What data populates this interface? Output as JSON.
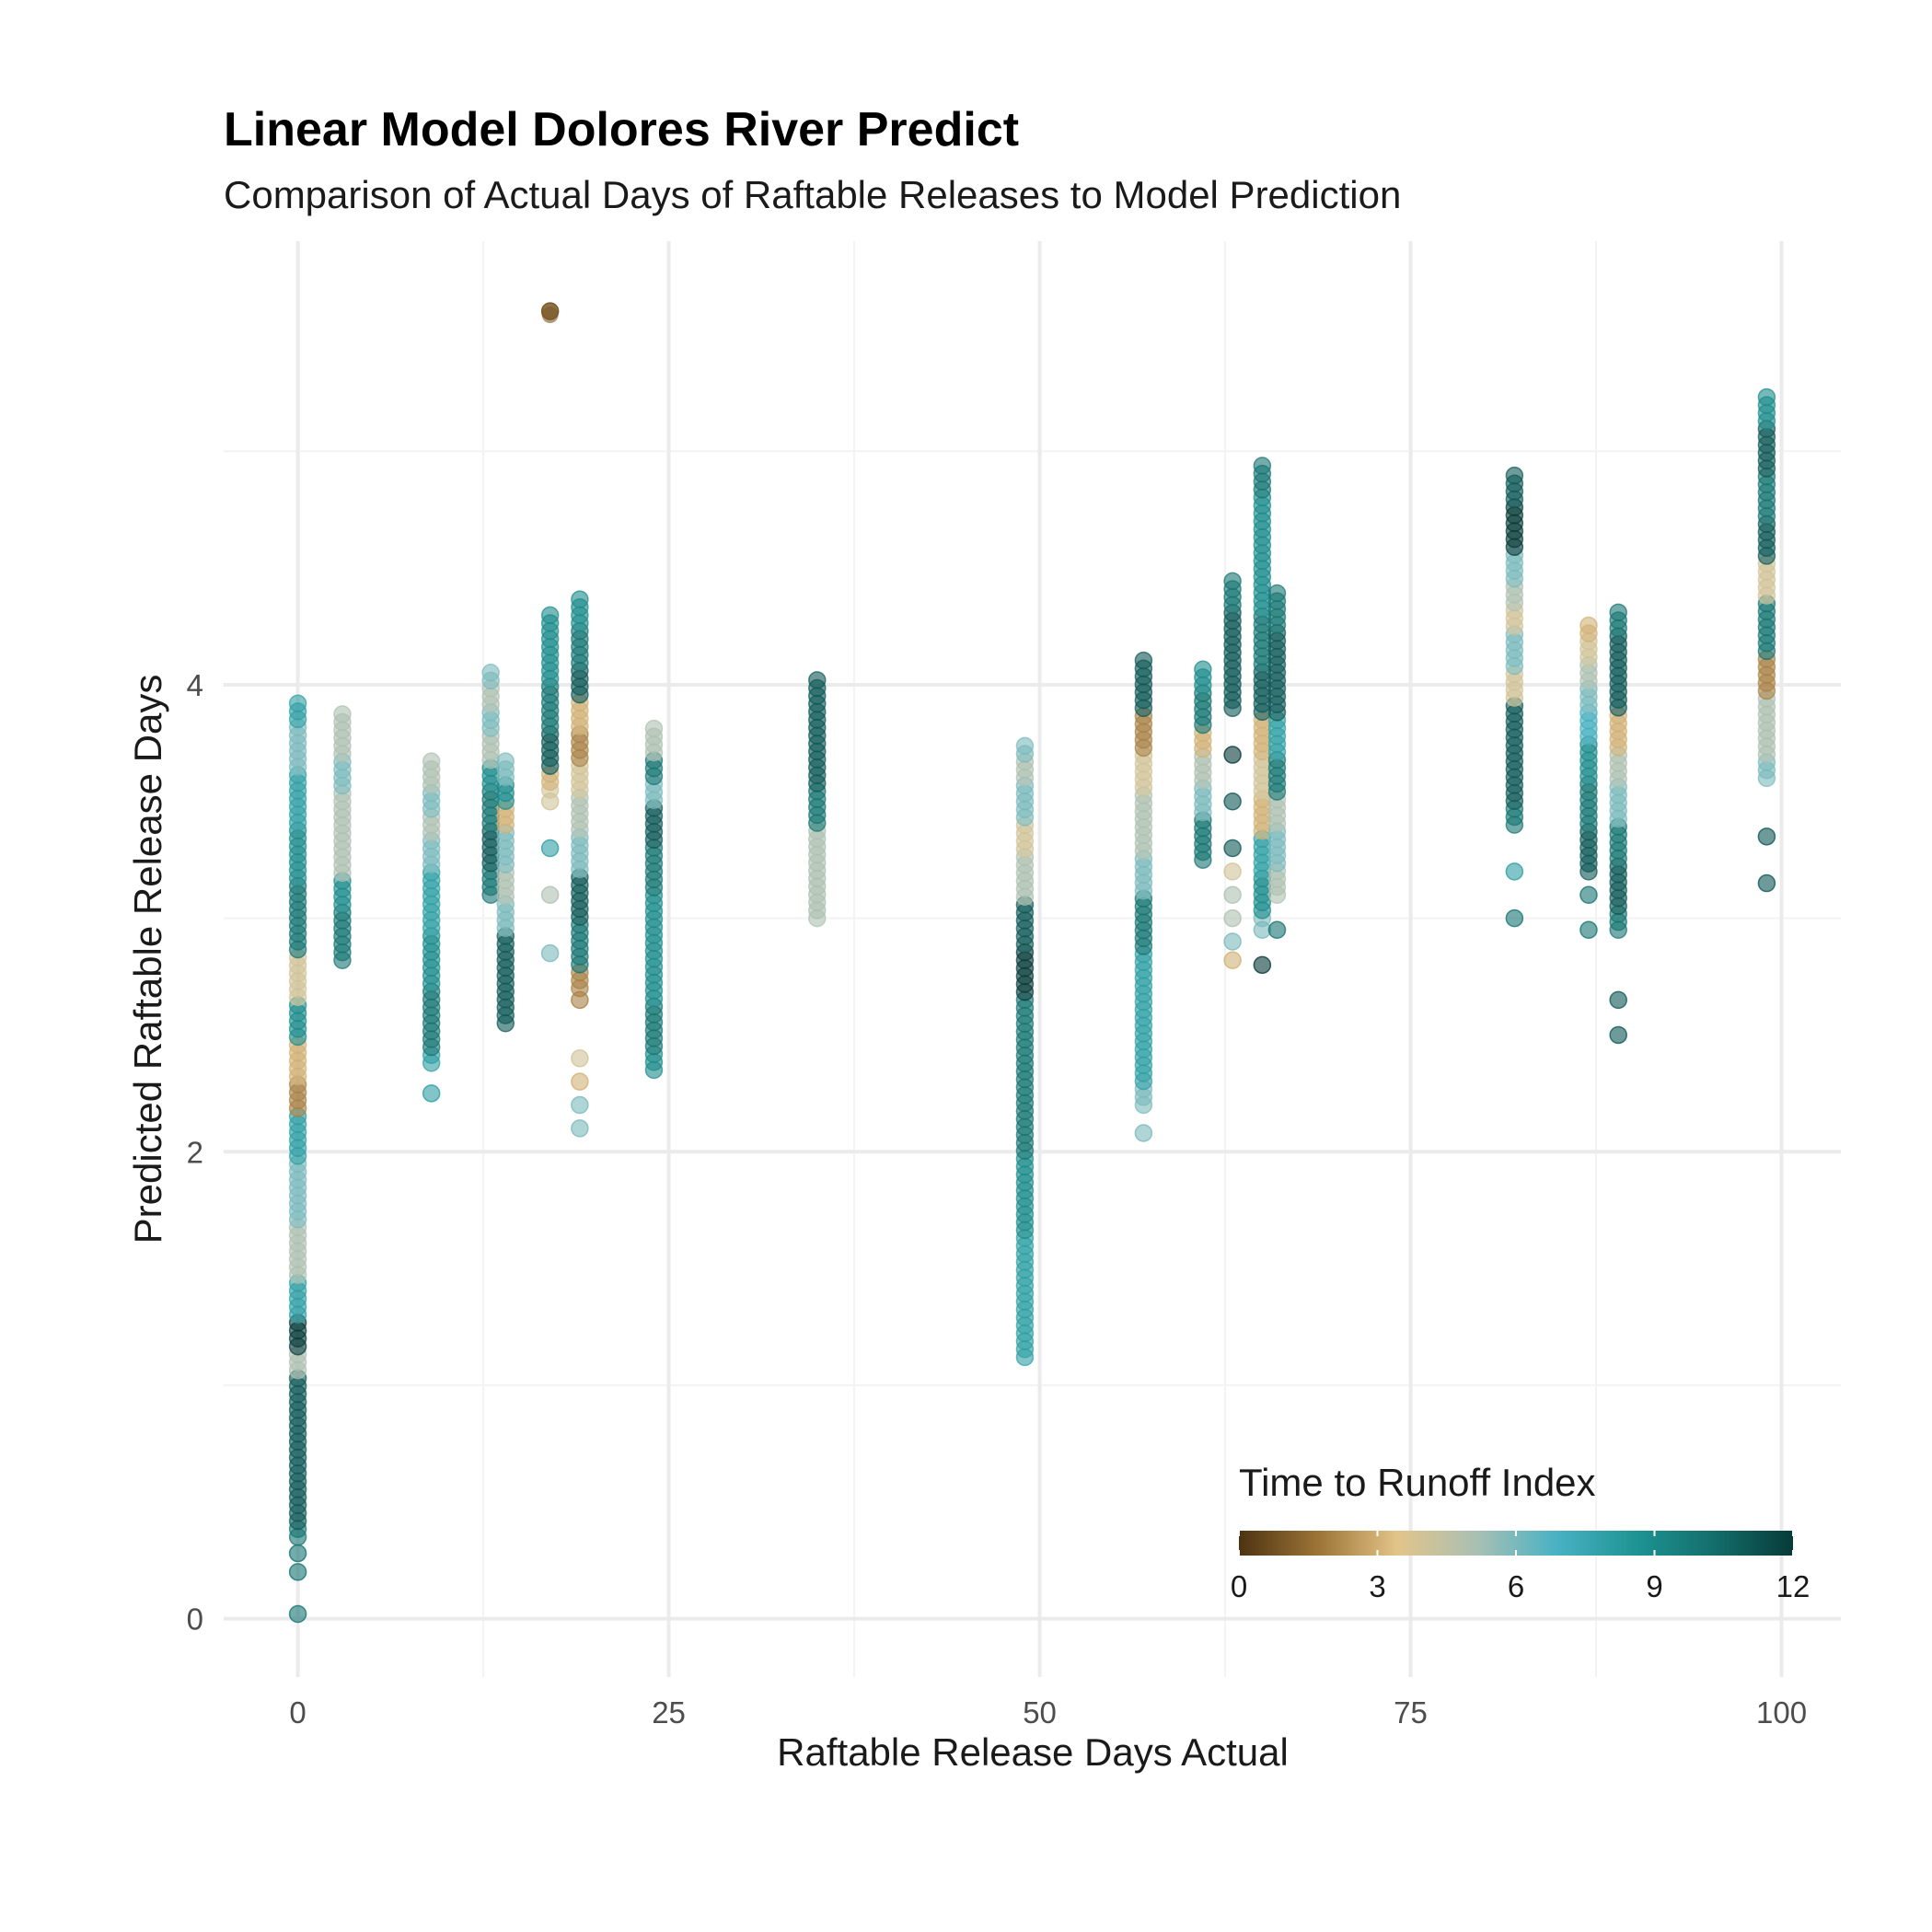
{
  "chart_data": {
    "type": "scatter",
    "title": "Linear Model Dolores River Predict",
    "subtitle": "Comparison of Actual Days of Raftable Releases to Model Prediction",
    "xlabel": "Raftable Release Days Actual",
    "ylabel": "Predicted Raftable Release Days",
    "xlim": [
      -5,
      104
    ],
    "ylim": [
      -0.25,
      5.9
    ],
    "x_ticks": [
      0,
      25,
      50,
      75,
      100
    ],
    "x_tick_labels": [
      "0",
      "25",
      "50",
      "75",
      "100"
    ],
    "y_ticks": [
      0,
      2,
      4
    ],
    "y_tick_labels": [
      "0",
      "2",
      "4"
    ],
    "grid": true,
    "legend": {
      "title": "Time to Runoff Index",
      "placement": "bottom-right",
      "ticks": [
        0,
        3,
        6,
        9,
        12
      ],
      "tick_labels": [
        "0",
        "3",
        "6",
        "9",
        "12"
      ],
      "range": [
        0,
        12
      ],
      "colors": [
        "#4d3312",
        "#9c7436",
        "#e3c489",
        "#a9c0b3",
        "#4ab2c4",
        "#1e9494",
        "#136e6b",
        "#073b39"
      ]
    },
    "point_opacity": 0.6,
    "columns": [
      {
        "x": 0,
        "y_min": 0.0,
        "y_max": 3.95,
        "dense_from": 0.35,
        "colored": [
          {
            "y": 0.02,
            "c": 10
          },
          {
            "y": 0.2,
            "c": 10
          },
          {
            "y": 0.28,
            "c": 10
          },
          {
            "y": 0.55,
            "c": 11
          },
          {
            "y": 0.8,
            "c": 11
          },
          {
            "y": 1.0,
            "c": 11
          },
          {
            "y": 1.1,
            "c": 5
          },
          {
            "y": 1.2,
            "c": 12
          },
          {
            "y": 1.35,
            "c": 8
          },
          {
            "y": 1.55,
            "c": 5
          },
          {
            "y": 1.62,
            "c": 5
          },
          {
            "y": 1.75,
            "c": 6
          },
          {
            "y": 1.9,
            "c": 6
          },
          {
            "y": 2.05,
            "c": 8
          },
          {
            "y": 2.12,
            "c": 8
          },
          {
            "y": 2.25,
            "c": 2
          },
          {
            "y": 2.35,
            "c": 3
          },
          {
            "y": 2.6,
            "c": 9
          },
          {
            "y": 2.7,
            "c": 4
          },
          {
            "y": 3.0,
            "c": 10
          },
          {
            "y": 3.3,
            "c": 9
          },
          {
            "y": 3.5,
            "c": 8
          },
          {
            "y": 3.75,
            "c": 6
          },
          {
            "y": 3.9,
            "c": 8
          }
        ]
      },
      {
        "x": 3,
        "y_min": 2.82,
        "y_max": 3.88,
        "dense_from": 2.82,
        "colored": [
          {
            "y": 3.85,
            "c": 5
          },
          {
            "y": 3.78,
            "c": 5
          },
          {
            "y": 3.62,
            "c": 6
          },
          {
            "y": 3.5,
            "c": 5
          },
          {
            "y": 3.35,
            "c": 5
          },
          {
            "y": 3.25,
            "c": 5
          },
          {
            "y": 3.1,
            "c": 9
          },
          {
            "y": 2.95,
            "c": 10
          }
        ]
      },
      {
        "x": 9,
        "y_min": 2.25,
        "y_max": 3.7,
        "dense_from": 2.38,
        "colored": [
          {
            "y": 3.68,
            "c": 5
          },
          {
            "y": 3.6,
            "c": 5
          },
          {
            "y": 3.5,
            "c": 6
          },
          {
            "y": 3.4,
            "c": 5
          },
          {
            "y": 3.3,
            "c": 6
          },
          {
            "y": 3.15,
            "c": 8
          },
          {
            "y": 3.05,
            "c": 8
          },
          {
            "y": 2.8,
            "c": 9
          },
          {
            "y": 2.6,
            "c": 10
          },
          {
            "y": 2.25,
            "c": 8
          }
        ]
      },
      {
        "x": 13,
        "y_min": 3.1,
        "y_max": 4.08,
        "dense_from": 3.1,
        "colored": [
          {
            "y": 4.05,
            "c": 6
          },
          {
            "y": 3.95,
            "c": 5
          },
          {
            "y": 3.85,
            "c": 6
          },
          {
            "y": 3.75,
            "c": 5
          },
          {
            "y": 3.6,
            "c": 9
          },
          {
            "y": 3.5,
            "c": 10
          },
          {
            "y": 3.3,
            "c": 11
          },
          {
            "y": 3.15,
            "c": 10
          }
        ]
      },
      {
        "x": 14,
        "y_min": 2.55,
        "y_max": 3.7,
        "dense_from": 2.55,
        "colored": [
          {
            "y": 3.65,
            "c": 6
          },
          {
            "y": 3.55,
            "c": 9
          },
          {
            "y": 3.45,
            "c": 3
          },
          {
            "y": 3.3,
            "c": 6
          },
          {
            "y": 3.15,
            "c": 5
          },
          {
            "y": 3.0,
            "c": 6
          },
          {
            "y": 2.85,
            "c": 11
          },
          {
            "y": 2.6,
            "c": 11
          }
        ]
      },
      {
        "x": 17,
        "y_min": 2.85,
        "y_max": 4.3,
        "dense_from": 3.55,
        "colored": [
          {
            "y": 5.6,
            "c": 1
          },
          {
            "y": 4.25,
            "c": 9
          },
          {
            "y": 4.1,
            "c": 9
          },
          {
            "y": 3.9,
            "c": 10
          },
          {
            "y": 3.7,
            "c": 11
          },
          {
            "y": 3.6,
            "c": 3
          },
          {
            "y": 3.5,
            "c": 4
          },
          {
            "y": 3.3,
            "c": 8
          },
          {
            "y": 3.1,
            "c": 5
          },
          {
            "y": 2.85,
            "c": 6
          }
        ]
      },
      {
        "x": 19,
        "y_min": 2.1,
        "y_max": 4.38,
        "dense_from": 2.7,
        "colored": [
          {
            "y": 4.35,
            "c": 9
          },
          {
            "y": 4.15,
            "c": 10
          },
          {
            "y": 4.0,
            "c": 11
          },
          {
            "y": 3.85,
            "c": 3
          },
          {
            "y": 3.75,
            "c": 2
          },
          {
            "y": 3.6,
            "c": 4
          },
          {
            "y": 3.45,
            "c": 5
          },
          {
            "y": 3.3,
            "c": 6
          },
          {
            "y": 3.1,
            "c": 11
          },
          {
            "y": 2.9,
            "c": 10
          },
          {
            "y": 2.65,
            "c": 2
          },
          {
            "y": 2.4,
            "c": 4
          },
          {
            "y": 2.3,
            "c": 3
          },
          {
            "y": 2.2,
            "c": 6
          },
          {
            "y": 2.1,
            "c": 6
          }
        ]
      },
      {
        "x": 24,
        "y_min": 2.35,
        "y_max": 3.82,
        "dense_from": 2.35,
        "colored": [
          {
            "y": 3.8,
            "c": 5
          },
          {
            "y": 3.75,
            "c": 5
          },
          {
            "y": 3.65,
            "c": 10
          },
          {
            "y": 3.55,
            "c": 6
          },
          {
            "y": 3.45,
            "c": 11
          },
          {
            "y": 3.2,
            "c": 10
          },
          {
            "y": 3.0,
            "c": 9
          },
          {
            "y": 2.8,
            "c": 9
          },
          {
            "y": 2.5,
            "c": 10
          },
          {
            "y": 2.38,
            "c": 9
          }
        ]
      },
      {
        "x": 35,
        "y_min": 3.0,
        "y_max": 4.05,
        "dense_from": 3.0,
        "colored": [
          {
            "y": 4.02,
            "c": 11
          },
          {
            "y": 3.85,
            "c": 11
          },
          {
            "y": 3.65,
            "c": 11
          },
          {
            "y": 3.45,
            "c": 10
          },
          {
            "y": 3.3,
            "c": 5
          },
          {
            "y": 3.2,
            "c": 5
          },
          {
            "y": 3.1,
            "c": 5
          },
          {
            "y": 3.02,
            "c": 5
          }
        ]
      },
      {
        "x": 49,
        "y_min": 1.12,
        "y_max": 3.75,
        "dense_from": 1.12,
        "colored": [
          {
            "y": 3.72,
            "c": 6
          },
          {
            "y": 3.65,
            "c": 5
          },
          {
            "y": 3.5,
            "c": 6
          },
          {
            "y": 3.35,
            "c": 4
          },
          {
            "y": 3.2,
            "c": 5
          },
          {
            "y": 2.95,
            "c": 11
          },
          {
            "y": 2.8,
            "c": 12
          },
          {
            "y": 2.5,
            "c": 10
          },
          {
            "y": 2.2,
            "c": 10
          },
          {
            "y": 1.8,
            "c": 9
          },
          {
            "y": 1.5,
            "c": 8
          },
          {
            "y": 1.25,
            "c": 8
          },
          {
            "y": 1.12,
            "c": 8
          }
        ]
      },
      {
        "x": 57,
        "y_min": 2.08,
        "y_max": 4.12,
        "dense_from": 2.2,
        "colored": [
          {
            "y": 4.1,
            "c": 11
          },
          {
            "y": 3.95,
            "c": 11
          },
          {
            "y": 3.8,
            "c": 2
          },
          {
            "y": 3.6,
            "c": 4
          },
          {
            "y": 3.5,
            "c": 5
          },
          {
            "y": 3.35,
            "c": 5
          },
          {
            "y": 3.2,
            "c": 6
          },
          {
            "y": 3.0,
            "c": 10
          },
          {
            "y": 2.7,
            "c": 8
          },
          {
            "y": 2.4,
            "c": 8
          },
          {
            "y": 2.2,
            "c": 6
          },
          {
            "y": 2.08,
            "c": 6
          }
        ]
      },
      {
        "x": 61,
        "y_min": 3.25,
        "y_max": 4.08,
        "dense_from": 3.25,
        "colored": [
          {
            "y": 4.05,
            "c": 9
          },
          {
            "y": 3.9,
            "c": 10
          },
          {
            "y": 3.75,
            "c": 3
          },
          {
            "y": 3.65,
            "c": 5
          },
          {
            "y": 3.5,
            "c": 6
          },
          {
            "y": 3.35,
            "c": 10
          }
        ]
      },
      {
        "x": 63,
        "y_min": 2.82,
        "y_max": 4.45,
        "dense_from": 3.9,
        "colored": [
          {
            "y": 4.42,
            "c": 10
          },
          {
            "y": 4.2,
            "c": 11
          },
          {
            "y": 4.0,
            "c": 11
          },
          {
            "y": 3.7,
            "c": 12
          },
          {
            "y": 3.5,
            "c": 11
          },
          {
            "y": 3.3,
            "c": 11
          },
          {
            "y": 3.2,
            "c": 4
          },
          {
            "y": 3.1,
            "c": 5
          },
          {
            "y": 3.0,
            "c": 5
          },
          {
            "y": 2.9,
            "c": 6
          },
          {
            "y": 2.82,
            "c": 3
          }
        ]
      },
      {
        "x": 65,
        "y_min": 2.72,
        "y_max": 4.95,
        "dense_from": 3.0,
        "colored": [
          {
            "y": 4.92,
            "c": 10
          },
          {
            "y": 4.7,
            "c": 9
          },
          {
            "y": 4.4,
            "c": 9
          },
          {
            "y": 4.2,
            "c": 10
          },
          {
            "y": 3.95,
            "c": 11
          },
          {
            "y": 3.8,
            "c": 3
          },
          {
            "y": 3.6,
            "c": 4
          },
          {
            "y": 3.45,
            "c": 3
          },
          {
            "y": 3.25,
            "c": 8
          },
          {
            "y": 3.1,
            "c": 9
          },
          {
            "y": 2.95,
            "c": 6
          },
          {
            "y": 2.8,
            "c": 12
          }
        ]
      },
      {
        "x": 66,
        "y_min": 2.95,
        "y_max": 4.4,
        "dense_from": 3.1,
        "colored": [
          {
            "y": 4.38,
            "c": 10
          },
          {
            "y": 4.1,
            "c": 11
          },
          {
            "y": 3.95,
            "c": 11
          },
          {
            "y": 3.8,
            "c": 8
          },
          {
            "y": 3.6,
            "c": 10
          },
          {
            "y": 3.45,
            "c": 5
          },
          {
            "y": 3.3,
            "c": 6
          },
          {
            "y": 3.15,
            "c": 5
          },
          {
            "y": 2.95,
            "c": 10
          }
        ]
      },
      {
        "x": 82,
        "y_min": 2.97,
        "y_max": 4.9,
        "dense_from": 3.4,
        "colored": [
          {
            "y": 4.88,
            "c": 11
          },
          {
            "y": 4.65,
            "c": 12
          },
          {
            "y": 4.5,
            "c": 6
          },
          {
            "y": 4.4,
            "c": 5
          },
          {
            "y": 4.3,
            "c": 4
          },
          {
            "y": 4.15,
            "c": 6
          },
          {
            "y": 4.0,
            "c": 4
          },
          {
            "y": 3.85,
            "c": 11
          },
          {
            "y": 3.6,
            "c": 11
          },
          {
            "y": 3.4,
            "c": 10
          },
          {
            "y": 3.2,
            "c": 8
          },
          {
            "y": 3.0,
            "c": 10
          }
        ]
      },
      {
        "x": 87,
        "y_min": 2.9,
        "y_max": 4.27,
        "dense_from": 3.2,
        "colored": [
          {
            "y": 4.25,
            "c": 3
          },
          {
            "y": 4.15,
            "c": 4
          },
          {
            "y": 4.05,
            "c": 5
          },
          {
            "y": 3.95,
            "c": 6
          },
          {
            "y": 3.85,
            "c": 7
          },
          {
            "y": 3.7,
            "c": 9
          },
          {
            "y": 3.5,
            "c": 10
          },
          {
            "y": 3.3,
            "c": 11
          },
          {
            "y": 3.1,
            "c": 10
          },
          {
            "y": 2.95,
            "c": 10
          }
        ]
      },
      {
        "x": 89,
        "y_min": 2.5,
        "y_max": 4.32,
        "dense_from": 2.95,
        "colored": [
          {
            "y": 4.3,
            "c": 10
          },
          {
            "y": 4.15,
            "c": 11
          },
          {
            "y": 3.95,
            "c": 11
          },
          {
            "y": 3.8,
            "c": 3
          },
          {
            "y": 3.65,
            "c": 5
          },
          {
            "y": 3.5,
            "c": 6
          },
          {
            "y": 3.35,
            "c": 10
          },
          {
            "y": 3.1,
            "c": 11
          },
          {
            "y": 2.95,
            "c": 10
          },
          {
            "y": 2.65,
            "c": 11
          },
          {
            "y": 2.5,
            "c": 11
          }
        ]
      },
      {
        "x": 99,
        "y_min": 3.1,
        "y_max": 5.25,
        "dense_from": 3.6,
        "colored": [
          {
            "y": 5.22,
            "c": 9
          },
          {
            "y": 5.0,
            "c": 11
          },
          {
            "y": 4.8,
            "c": 10
          },
          {
            "y": 4.6,
            "c": 11
          },
          {
            "y": 4.45,
            "c": 4
          },
          {
            "y": 4.25,
            "c": 10
          },
          {
            "y": 4.0,
            "c": 2
          },
          {
            "y": 3.9,
            "c": 5
          },
          {
            "y": 3.75,
            "c": 5
          },
          {
            "y": 3.6,
            "c": 6
          },
          {
            "y": 3.35,
            "c": 11
          },
          {
            "y": 3.15,
            "c": 11
          }
        ]
      }
    ]
  }
}
